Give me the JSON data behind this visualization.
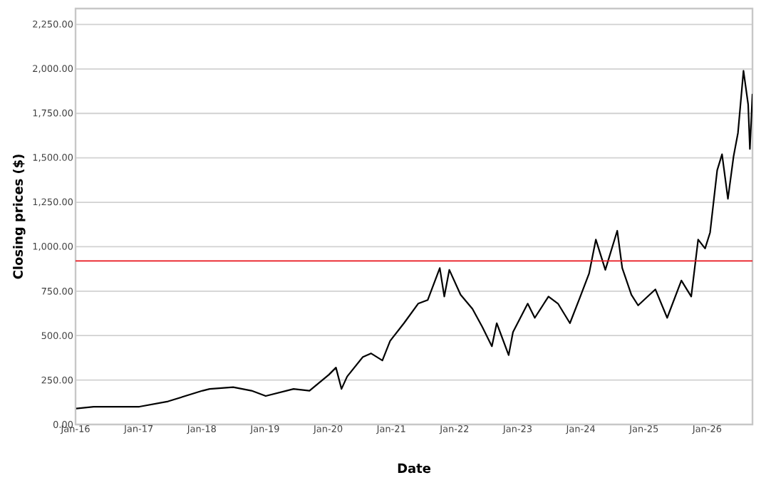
{
  "chart_data": {
    "type": "line",
    "xlabel": "Date",
    "ylabel": "Closing prices ($)",
    "x": [
      "2016-01-05",
      "2016-04-15",
      "2017-01-05",
      "2017-06-20",
      "2018-01-05",
      "2018-02-15",
      "2018-07-01",
      "2018-10-15",
      "2019-01-05",
      "2019-06-15",
      "2019-09-15",
      "2020-01-05",
      "2020-02-15",
      "2020-03-18",
      "2020-04-20",
      "2020-07-20",
      "2020-09-05",
      "2020-11-10",
      "2020-12-25",
      "2021-03-15",
      "2021-06-05",
      "2021-07-30",
      "2021-10-08",
      "2021-11-03",
      "2021-12-02",
      "2022-02-05",
      "2022-04-15",
      "2022-06-10",
      "2022-08-05",
      "2022-09-02",
      "2022-11-10",
      "2022-12-05",
      "2023-02-28",
      "2023-04-10",
      "2023-06-28",
      "2023-08-22",
      "2023-10-30",
      "2023-12-25",
      "2024-02-18",
      "2024-03-28",
      "2024-05-22",
      "2024-07-30",
      "2024-08-28",
      "2024-10-20",
      "2024-11-28",
      "2025-03-08",
      "2025-05-15",
      "2025-08-05",
      "2025-10-01",
      "2025-11-10",
      "2025-12-20",
      "2026-01-18",
      "2026-02-28",
      "2026-03-28",
      "2026-05-01",
      "2026-06-03",
      "2026-06-28",
      "2026-07-30",
      "2026-08-26",
      "2026-09-05",
      "2026-09-20"
    ],
    "values": [
      90,
      100,
      100,
      130,
      190,
      200,
      210,
      190,
      160,
      200,
      190,
      280,
      320,
      200,
      270,
      380,
      400,
      360,
      470,
      570,
      680,
      700,
      880,
      720,
      870,
      730,
      650,
      550,
      440,
      570,
      390,
      520,
      680,
      600,
      720,
      680,
      570,
      710,
      850,
      1040,
      870,
      1090,
      880,
      730,
      670,
      760,
      600,
      810,
      720,
      1040,
      990,
      1080,
      1430,
      1520,
      1270,
      1510,
      1640,
      1990,
      1800,
      1550,
      1860
    ],
    "color": "#000000",
    "marker": "none",
    "line_style": "solid",
    "grid": "y",
    "xlim": [
      "2016-01-01",
      "2026-09-20"
    ],
    "ylim": [
      0,
      2340
    ],
    "xticks": [
      {
        "value": "2016-01-01",
        "label": "Jan-16"
      },
      {
        "value": "2017-01-01",
        "label": "Jan-17"
      },
      {
        "value": "2018-01-01",
        "label": "Jan-18"
      },
      {
        "value": "2019-01-01",
        "label": "Jan-19"
      },
      {
        "value": "2020-01-01",
        "label": "Jan-20"
      },
      {
        "value": "2021-01-01",
        "label": "Jan-21"
      },
      {
        "value": "2022-01-01",
        "label": "Jan-22"
      },
      {
        "value": "2023-01-01",
        "label": "Jan-23"
      },
      {
        "value": "2024-01-01",
        "label": "Jan-24"
      },
      {
        "value": "2025-01-01",
        "label": "Jan-25"
      },
      {
        "value": "2026-01-01",
        "label": "Jan-26"
      }
    ],
    "yticks": [
      {
        "value": 0,
        "label": "0.00"
      },
      {
        "value": 250,
        "label": "250.00"
      },
      {
        "value": 500,
        "label": "500.00"
      },
      {
        "value": 750,
        "label": "750.00"
      },
      {
        "value": 1000,
        "label": "1,000.00"
      },
      {
        "value": 1250,
        "label": "1,250.00"
      },
      {
        "value": 1500,
        "label": "1,500.00"
      },
      {
        "value": 1750,
        "label": "1,750.00"
      },
      {
        "value": 2000,
        "label": "2,000.00"
      },
      {
        "value": 2250,
        "label": "2,250.00"
      }
    ],
    "ref_lines": [
      {
        "axis": "y",
        "value": 920,
        "color": "#e8141c"
      }
    ]
  }
}
